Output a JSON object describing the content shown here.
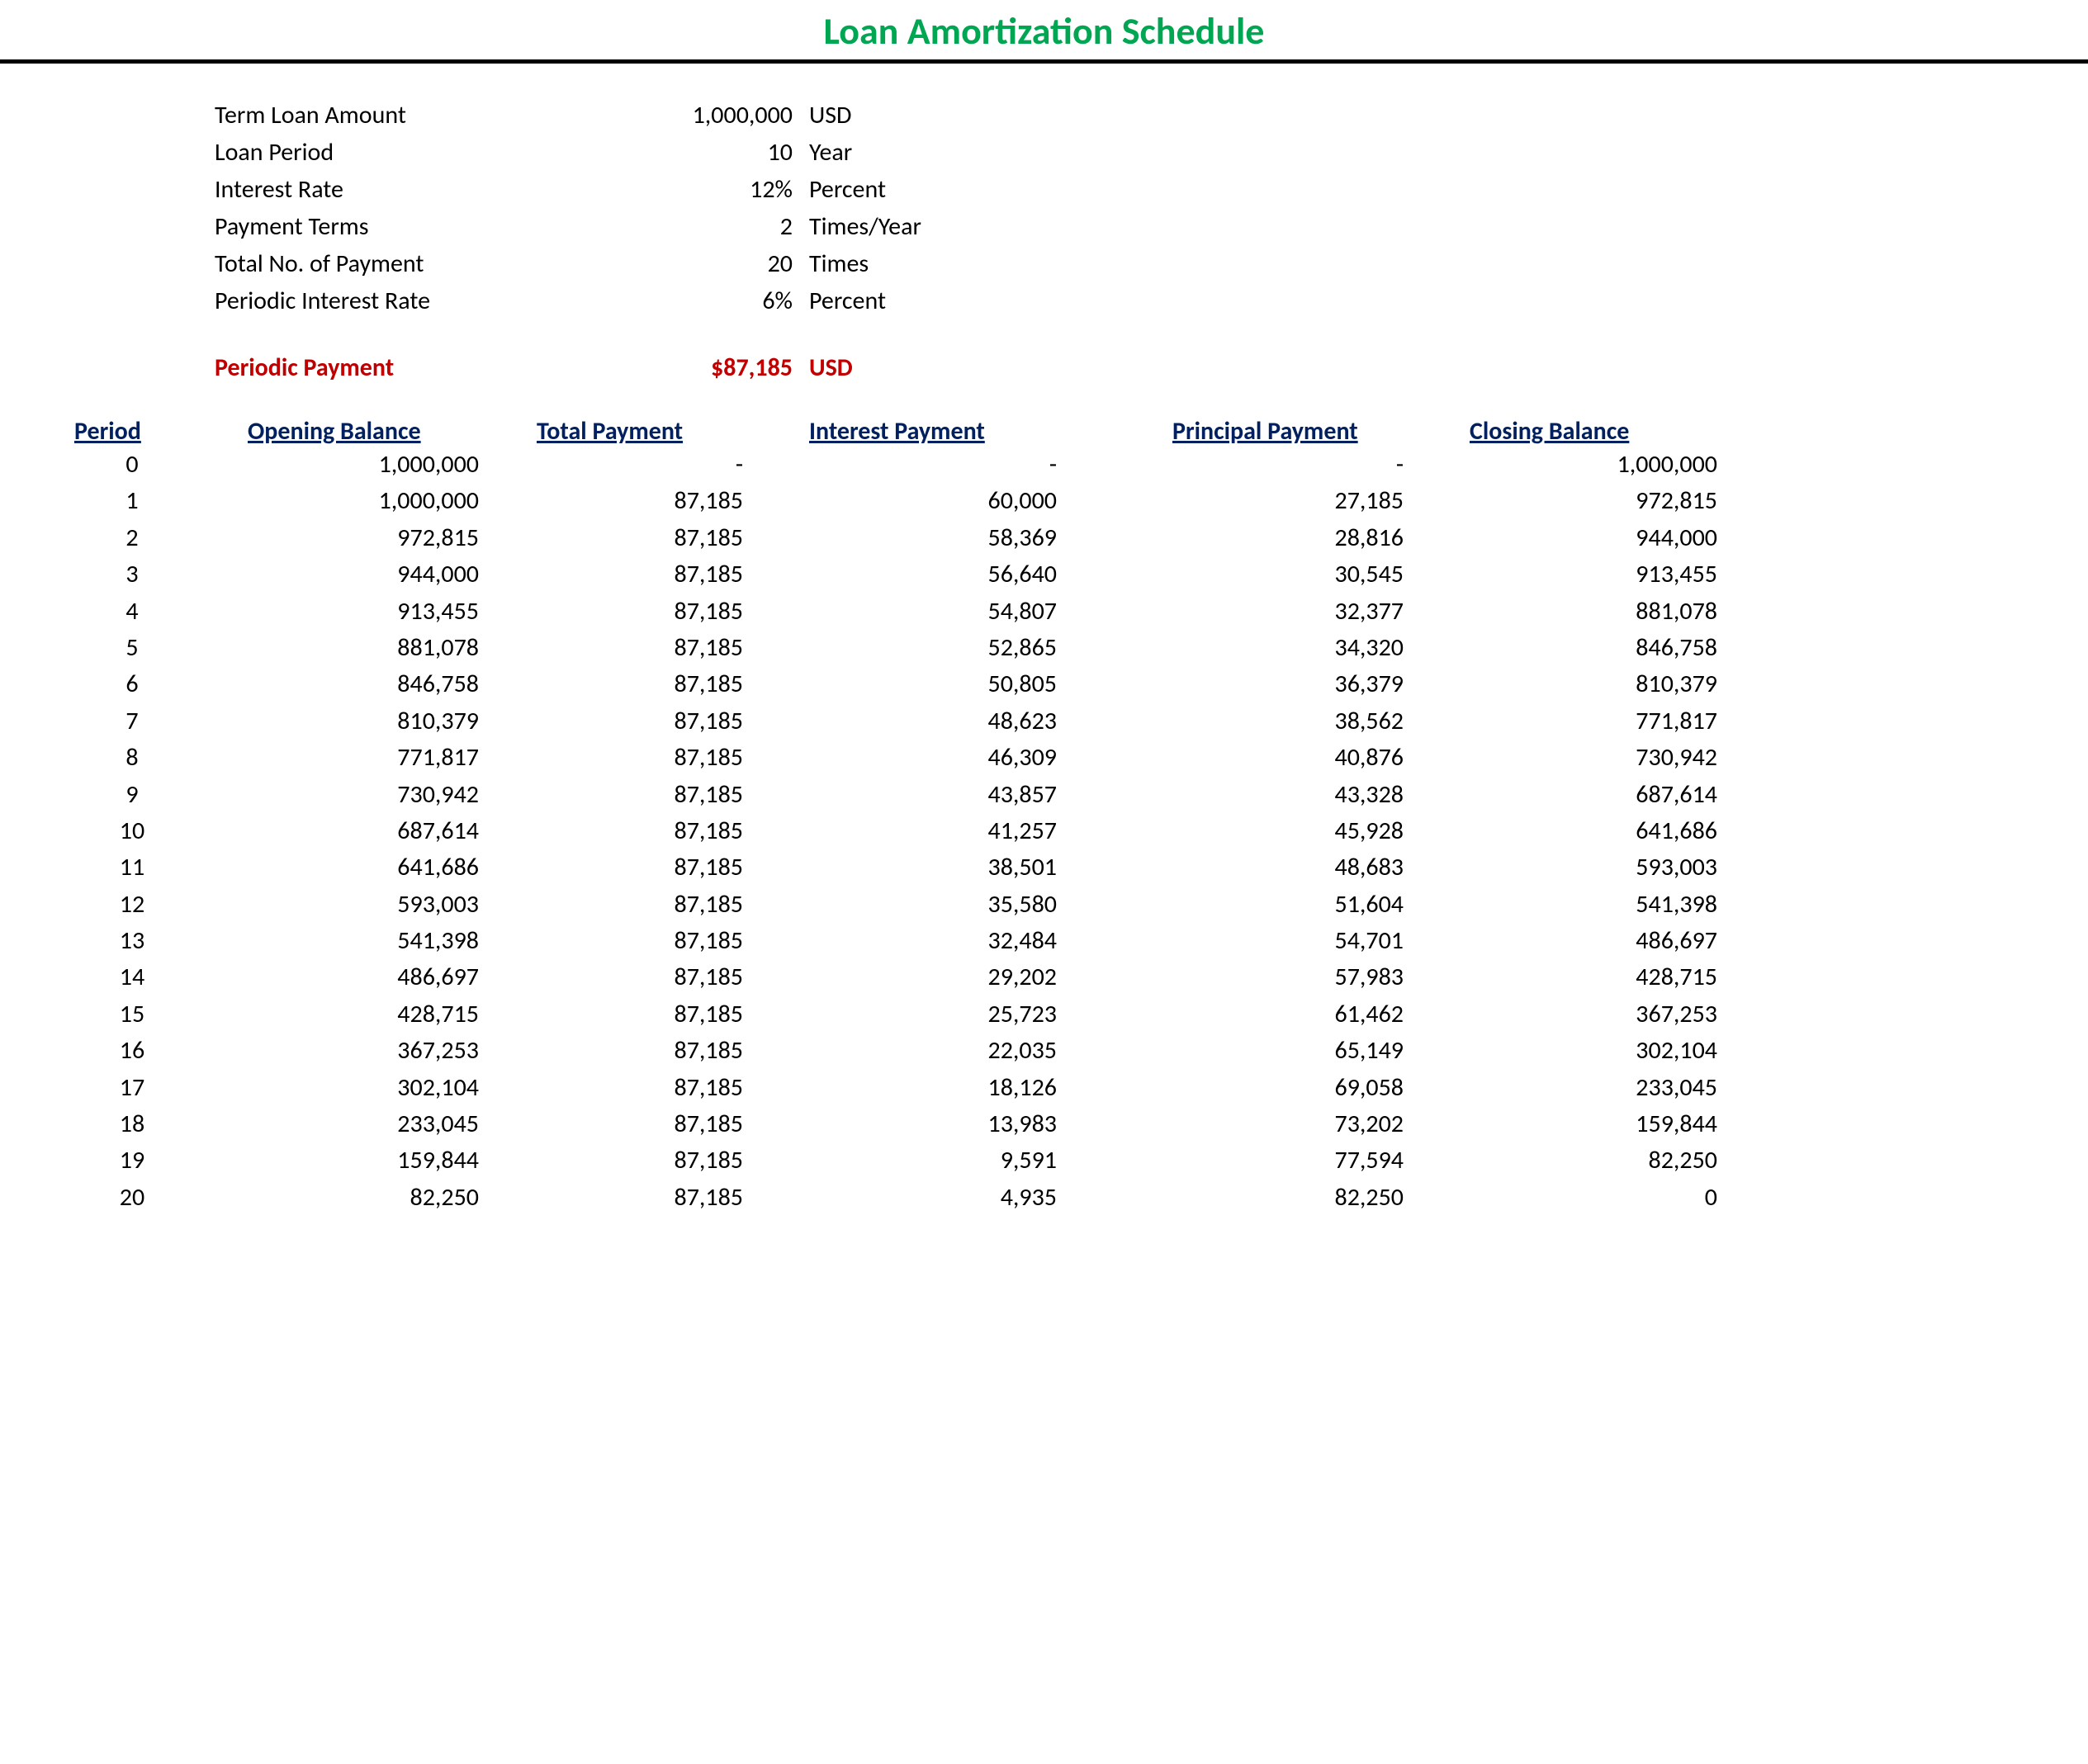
{
  "title": "Loan Amortization Schedule",
  "colors": {
    "title": "#00a651",
    "header_text": "#002060",
    "periodic_text": "#c00000",
    "body_text": "#000000",
    "background": "#ffffff",
    "rule": "#000000"
  },
  "typography": {
    "title_fontsize": 46,
    "body_fontsize": 30,
    "font_family": "Calibri"
  },
  "summary": [
    {
      "label": "Term Loan Amount",
      "value": "1,000,000",
      "unit": "USD"
    },
    {
      "label": "Loan Period",
      "value": "10",
      "unit": "Year"
    },
    {
      "label": "Interest Rate",
      "value": "12%",
      "unit": "Percent"
    },
    {
      "label": "Payment Terms",
      "value": "2",
      "unit": "Times/Year"
    },
    {
      "label": "Total No. of Payment",
      "value": "20",
      "unit": "Times"
    },
    {
      "label": "Periodic Interest Rate",
      "value": "6%",
      "unit": "Percent"
    }
  ],
  "periodic_payment": {
    "label": "Periodic Payment",
    "value": "$87,185",
    "unit": "USD"
  },
  "table": {
    "columns": [
      "Period",
      "Opening Balance",
      "Total Payment",
      "Interest Payment",
      "Principal Payment",
      "Closing Balance"
    ],
    "rows": [
      [
        "0",
        "1,000,000",
        "-",
        "-",
        "-",
        "1,000,000"
      ],
      [
        "1",
        "1,000,000",
        "87,185",
        "60,000",
        "27,185",
        "972,815"
      ],
      [
        "2",
        "972,815",
        "87,185",
        "58,369",
        "28,816",
        "944,000"
      ],
      [
        "3",
        "944,000",
        "87,185",
        "56,640",
        "30,545",
        "913,455"
      ],
      [
        "4",
        "913,455",
        "87,185",
        "54,807",
        "32,377",
        "881,078"
      ],
      [
        "5",
        "881,078",
        "87,185",
        "52,865",
        "34,320",
        "846,758"
      ],
      [
        "6",
        "846,758",
        "87,185",
        "50,805",
        "36,379",
        "810,379"
      ],
      [
        "7",
        "810,379",
        "87,185",
        "48,623",
        "38,562",
        "771,817"
      ],
      [
        "8",
        "771,817",
        "87,185",
        "46,309",
        "40,876",
        "730,942"
      ],
      [
        "9",
        "730,942",
        "87,185",
        "43,857",
        "43,328",
        "687,614"
      ],
      [
        "10",
        "687,614",
        "87,185",
        "41,257",
        "45,928",
        "641,686"
      ],
      [
        "11",
        "641,686",
        "87,185",
        "38,501",
        "48,683",
        "593,003"
      ],
      [
        "12",
        "593,003",
        "87,185",
        "35,580",
        "51,604",
        "541,398"
      ],
      [
        "13",
        "541,398",
        "87,185",
        "32,484",
        "54,701",
        "486,697"
      ],
      [
        "14",
        "486,697",
        "87,185",
        "29,202",
        "57,983",
        "428,715"
      ],
      [
        "15",
        "428,715",
        "87,185",
        "25,723",
        "61,462",
        "367,253"
      ],
      [
        "16",
        "367,253",
        "87,185",
        "22,035",
        "65,149",
        "302,104"
      ],
      [
        "17",
        "302,104",
        "87,185",
        "18,126",
        "69,058",
        "233,045"
      ],
      [
        "18",
        "233,045",
        "87,185",
        "13,983",
        "73,202",
        "159,844"
      ],
      [
        "19",
        "159,844",
        "87,185",
        "9,591",
        "77,594",
        "82,250"
      ],
      [
        "20",
        "82,250",
        "87,185",
        "4,935",
        "82,250",
        "0"
      ]
    ]
  }
}
